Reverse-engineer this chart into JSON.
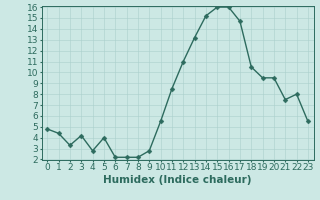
{
  "x": [
    0,
    1,
    2,
    3,
    4,
    5,
    6,
    7,
    8,
    9,
    10,
    11,
    12,
    13,
    14,
    15,
    16,
    17,
    18,
    19,
    20,
    21,
    22,
    23
  ],
  "y": [
    4.8,
    4.4,
    3.3,
    4.2,
    2.8,
    4.0,
    2.2,
    2.2,
    2.2,
    2.8,
    5.5,
    8.5,
    11.0,
    13.2,
    15.2,
    16.0,
    16.0,
    14.7,
    10.5,
    9.5,
    9.5,
    7.5,
    8.0,
    5.5
  ],
  "line_color": "#2d6b5e",
  "marker_color": "#2d6b5e",
  "bg_color": "#cce8e4",
  "grid_color": "#aad0cc",
  "xlabel": "Humidex (Indice chaleur)",
  "xlim": [
    -0.5,
    23.5
  ],
  "ylim": [
    2,
    16
  ],
  "yticks": [
    2,
    3,
    4,
    5,
    6,
    7,
    8,
    9,
    10,
    11,
    12,
    13,
    14,
    15,
    16
  ],
  "xtick_labels": [
    "0",
    "1",
    "2",
    "3",
    "4",
    "5",
    "6",
    "7",
    "8",
    "9",
    "10",
    "11",
    "12",
    "13",
    "14",
    "15",
    "16",
    "17",
    "18",
    "19",
    "20",
    "21",
    "22",
    "23"
  ],
  "xlabel_fontsize": 7.5,
  "tick_fontsize": 6.5,
  "line_width": 1.0,
  "marker_size": 2.5
}
